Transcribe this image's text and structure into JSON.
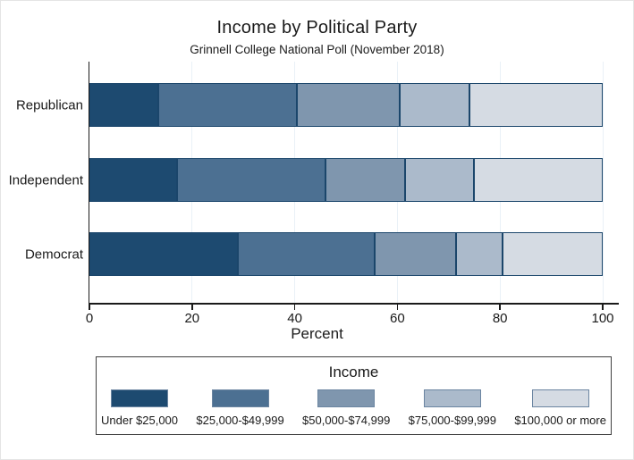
{
  "chart_data": {
    "type": "bar",
    "orientation": "horizontal",
    "stacked": true,
    "title": "Income by Political Party",
    "subtitle": "Grinnell College National Poll (November 2018)",
    "categories": [
      "Republican",
      "Independent",
      "Democrat"
    ],
    "series": [
      {
        "name": "Under $25,000",
        "color": "#1d4a70",
        "values": [
          13.5,
          17,
          29
        ]
      },
      {
        "name": "$25,000-$49,999",
        "color": "#4c7092",
        "values": [
          27,
          29,
          26.5
        ]
      },
      {
        "name": "$50,000-$74,999",
        "color": "#7f96ae",
        "values": [
          20,
          15.5,
          16
        ]
      },
      {
        "name": "$75,000-$99,999",
        "color": "#abbacb",
        "values": [
          13.5,
          13.5,
          9
        ]
      },
      {
        "name": "$100,000 or more",
        "color": "#d5dbe3",
        "values": [
          26,
          25,
          19.5
        ]
      }
    ],
    "xlabel": "Percent",
    "xlim": [
      0,
      100
    ],
    "x_ticks": [
      0,
      20,
      40,
      60,
      80,
      100
    ],
    "grid": "vertical",
    "legend": {
      "title": "Income",
      "position": "bottom-box"
    }
  },
  "colors": {
    "segment_border": "#1b466b",
    "axis": "#1a1a1a",
    "gridline": "#eaf1f7",
    "legend_border": "#3f3f3f",
    "background": "#ffffff"
  }
}
